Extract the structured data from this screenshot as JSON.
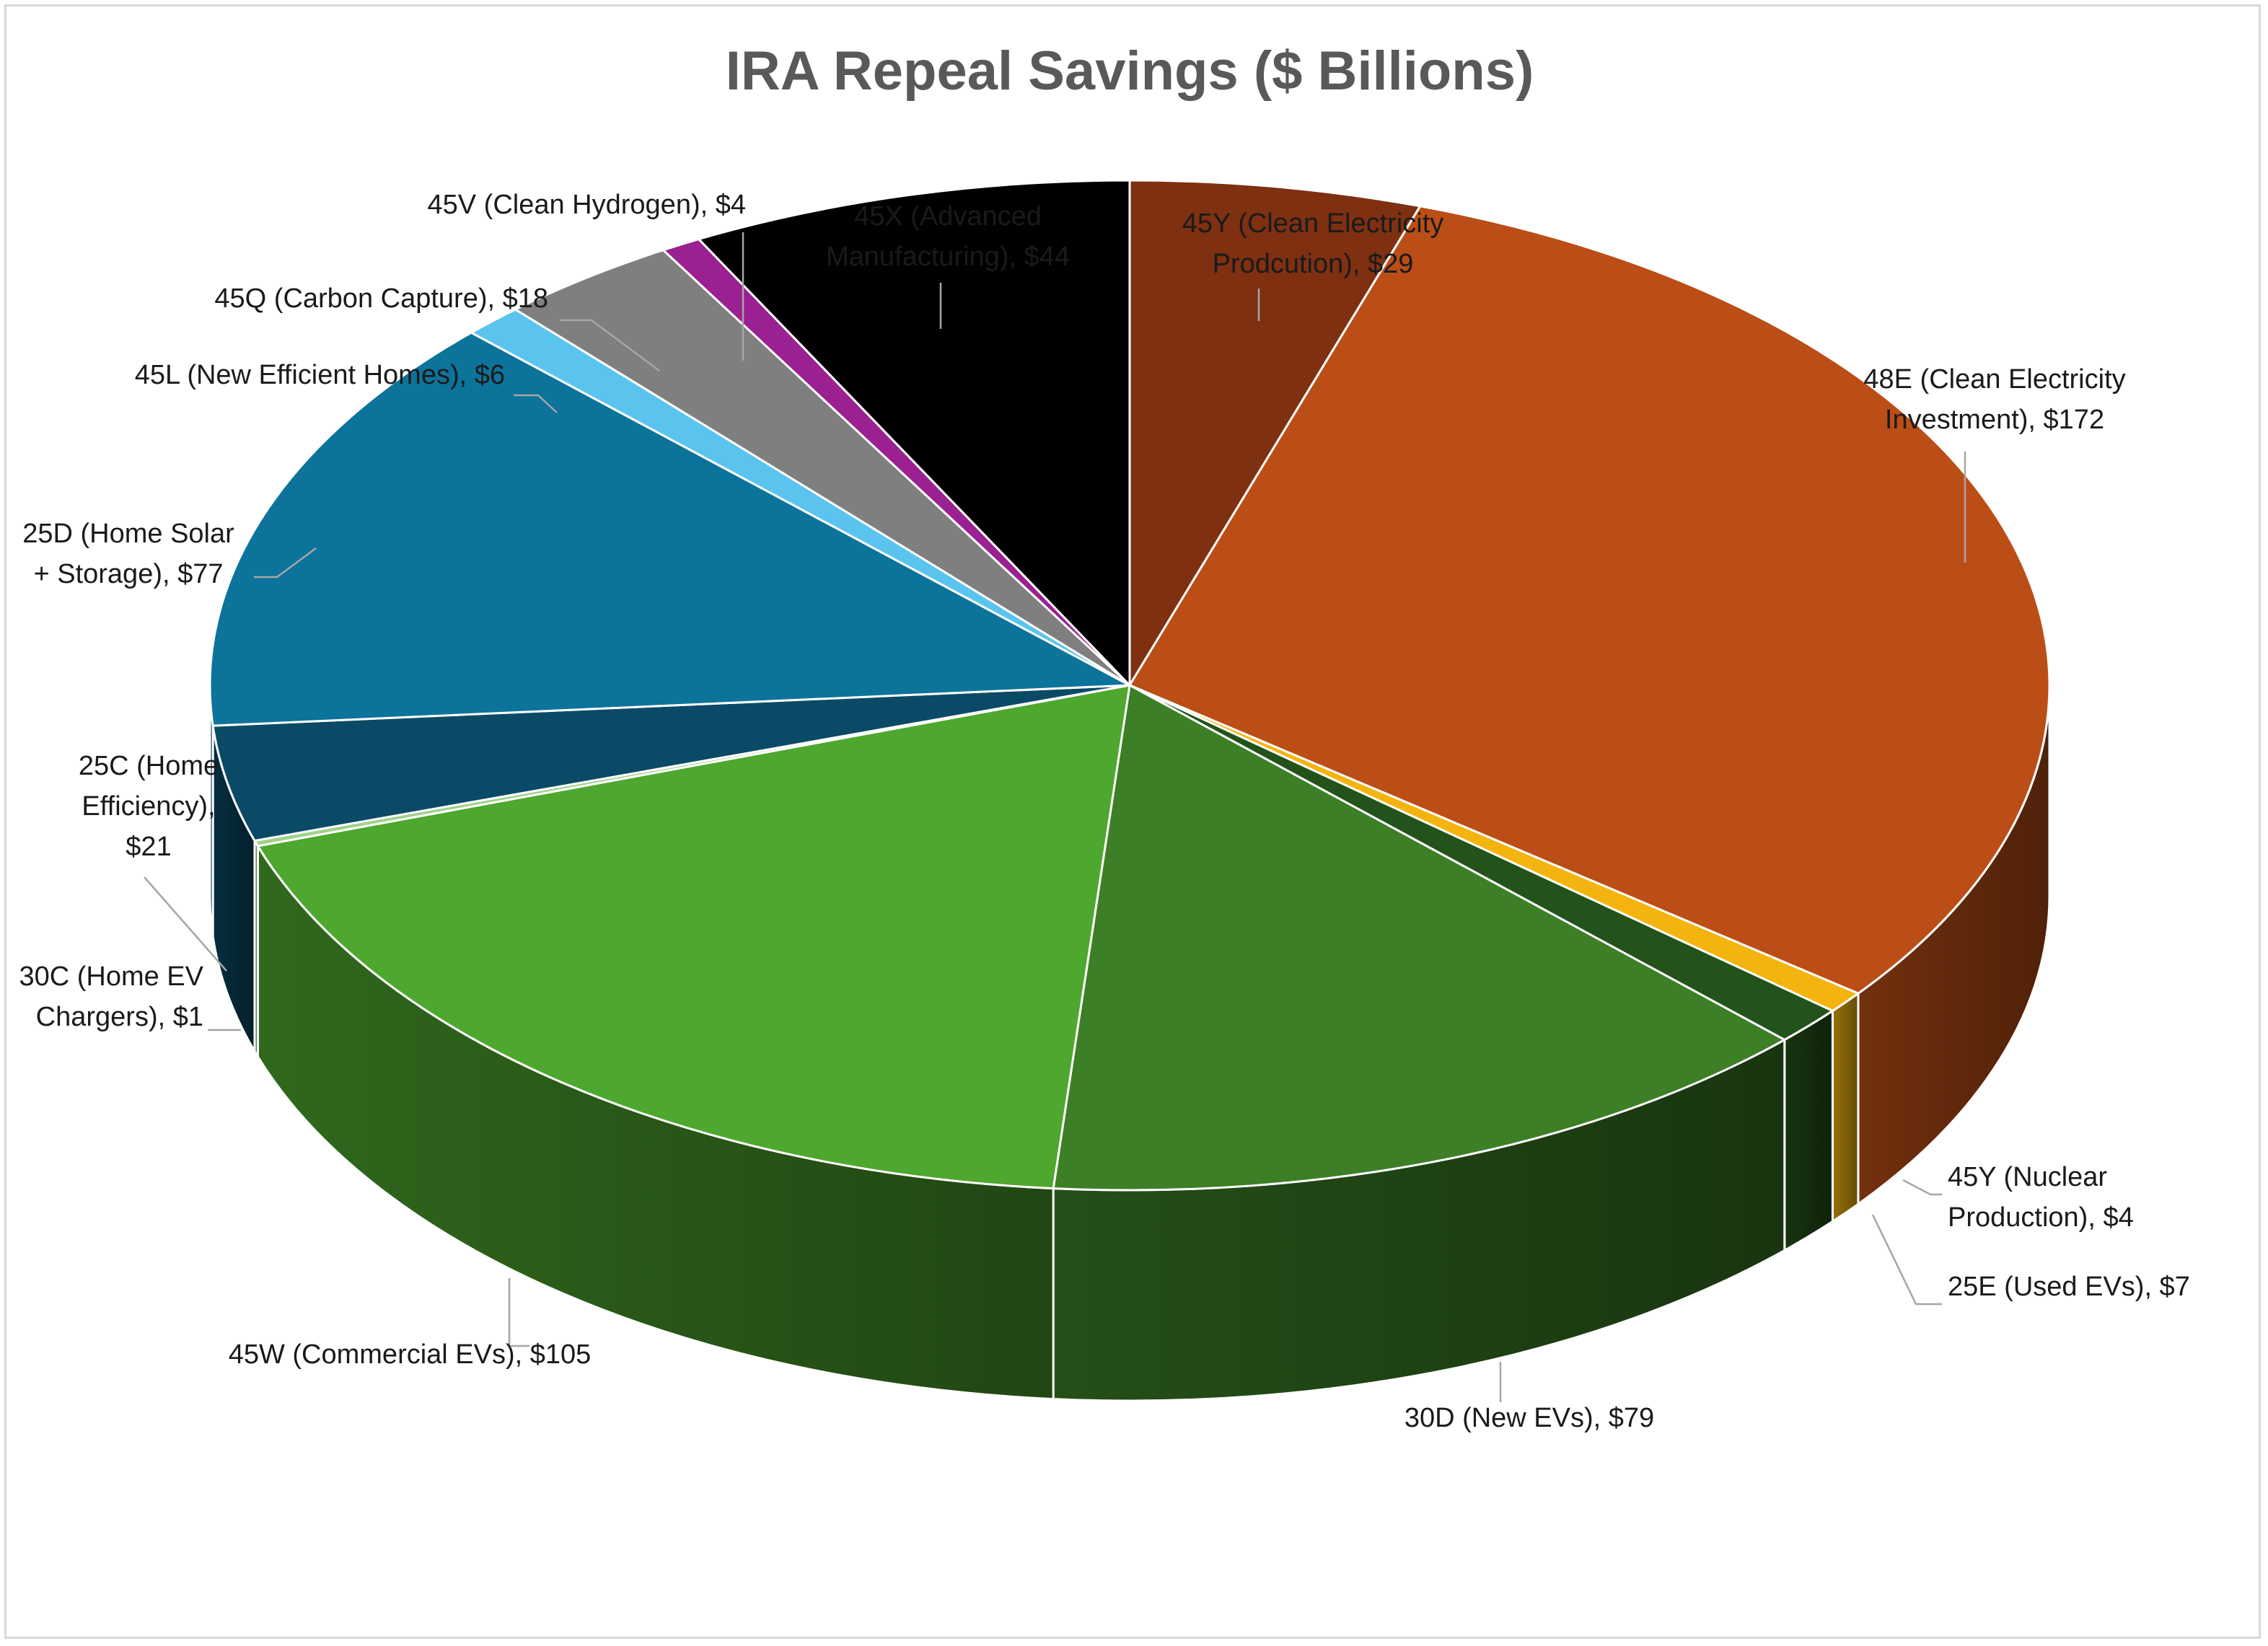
{
  "chart_data": {
    "type": "pie",
    "style": "3d",
    "title": "IRA Repeal Savings ($ Billions)",
    "slices": [
      {
        "name": "45Y (Clean Electricity Prodcution)",
        "value": 29,
        "label": "45Y (Clean Electricity\nProdcution), $29",
        "color": "#7e3011"
      },
      {
        "name": "48E (Clean Electricity Investment)",
        "value": 172,
        "label": "48E (Clean Electricity\nInvestment), $172",
        "color": "#bb4e16"
      },
      {
        "name": "45Y (Nuclear Production)",
        "value": 4,
        "label": "45Y (Nuclear\nProduction), $4",
        "color": "#f4b40f"
      },
      {
        "name": "25E (Used EVs)",
        "value": 7,
        "label": "25E (Used EVs), $7",
        "color": "#23521a"
      },
      {
        "name": "30D (New EVs)",
        "value": 79,
        "label": "30D (New EVs), $79",
        "color": "#3c7f26"
      },
      {
        "name": "45W (Commercial EVs)",
        "value": 105,
        "label": "45W (Commercial EVs), $105",
        "color": "#4ea72e"
      },
      {
        "name": "30C (Home EV Chargers)",
        "value": 1,
        "label": "30C (Home EV\nChargers), $1",
        "color": "#9fd28a"
      },
      {
        "name": "25C (Home Efficiency)",
        "value": 21,
        "label": "25C (Home\nEfficiency),\n$21",
        "color": "#0a4a66"
      },
      {
        "name": "25D (Home Solar + Storage)",
        "value": 77,
        "label": "25D (Home Solar\n+ Storage), $77",
        "color": "#0c739b"
      },
      {
        "name": "45L (New Efficient Homes)",
        "value": 6,
        "label": "45L (New Efficient Homes), $6",
        "color": "#5bc4ee"
      },
      {
        "name": "45Q (Carbon Capture)",
        "value": 18,
        "label": "45Q (Carbon Capture), $18",
        "color": "#7f7f7f"
      },
      {
        "name": "45V (Clean Hydrogen)",
        "value": 4,
        "label": "45V (Clean Hydrogen), $4",
        "color": "#9b2091"
      },
      {
        "name": "45X (Advanced Manufacturing)",
        "value": 44,
        "label": "45X (Advanced\nManufacturing), $44",
        "color": "#000000"
      }
    ],
    "start_angle_deg": -90,
    "direction": "clockwise",
    "legend": "none",
    "data_labels": "category name and value, outside end with leader lines"
  }
}
